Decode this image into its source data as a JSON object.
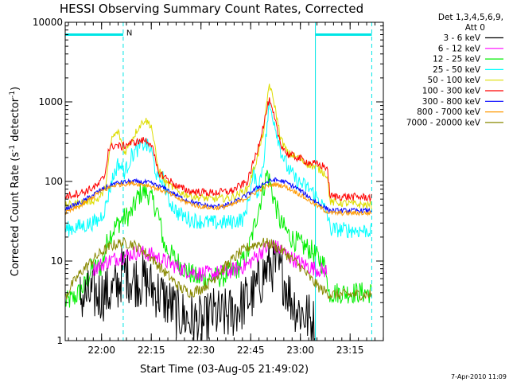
{
  "chart_data": {
    "type": "line",
    "title": "HESSI Observing Summary Count Rates, Corrected",
    "xlabel": "Start Time (03-Aug-05 21:49:02)",
    "ylabel_prefix": "Corrected Count Rate (s",
    "ylabel_exp1": "-1",
    "ylabel_mid": " detector",
    "ylabel_exp2": "-1",
    "ylabel_suffix": ")",
    "y_scale": "log",
    "ylim": [
      1,
      10000
    ],
    "xlim_minutes_after_start": [
      0,
      96
    ],
    "y_ticks": [
      {
        "value": 1,
        "label": "1"
      },
      {
        "value": 10,
        "label": "10"
      },
      {
        "value": 100,
        "label": "100"
      },
      {
        "value": 1000,
        "label": "1000"
      },
      {
        "value": 10000,
        "label": "10000"
      }
    ],
    "x_ticks": [
      {
        "minute": 10.97,
        "label": "22:00"
      },
      {
        "minute": 25.97,
        "label": "22:15"
      },
      {
        "minute": 40.97,
        "label": "22:30"
      },
      {
        "minute": 55.97,
        "label": "22:45"
      },
      {
        "minute": 70.97,
        "label": "23:00"
      },
      {
        "minute": 85.97,
        "label": "23:15"
      }
    ],
    "legend_header": [
      "Det 1,3,4,5,6,9,",
      "Att 0"
    ],
    "grid": false,
    "legend_position": "outside-right",
    "night_marker_label": "N",
    "night_intervals_minutes": [
      [
        0,
        17.5
      ],
      [
        75.5,
        92.5
      ]
    ],
    "night_bar_level": 7000,
    "boundary_lines_minutes": [
      0,
      17.5,
      75.5,
      92.5
    ],
    "series": [
      {
        "name": "3 - 6 keV",
        "color": "#000000",
        "noise": 0.35,
        "points": [
          [
            4.5,
            3.5
          ],
          [
            14,
            4
          ],
          [
            16,
            5
          ],
          [
            17.5,
            8
          ],
          [
            20,
            6
          ],
          [
            24,
            5.5
          ],
          [
            28,
            4
          ],
          [
            31,
            3
          ],
          [
            34,
            2.2
          ],
          [
            38,
            1.8
          ],
          [
            42,
            1.6
          ],
          [
            44,
            2.2
          ],
          [
            47,
            2
          ],
          [
            50,
            2.2
          ],
          [
            54,
            3
          ],
          [
            57,
            4
          ],
          [
            60,
            7
          ],
          [
            62,
            9
          ],
          [
            64,
            8
          ],
          [
            66,
            6
          ],
          [
            68,
            3.5
          ],
          [
            70,
            2.5
          ],
          [
            73,
            2
          ],
          [
            75.5,
            1.5
          ]
        ]
      },
      {
        "name": "6 - 12 keV",
        "color": "#ff00ff",
        "noise": 0.1,
        "points": [
          [
            8.5,
            8
          ],
          [
            13,
            10
          ],
          [
            16,
            11
          ],
          [
            19,
            12
          ],
          [
            22,
            13
          ],
          [
            26,
            12
          ],
          [
            30,
            10
          ],
          [
            35,
            8
          ],
          [
            40,
            7
          ],
          [
            45,
            7
          ],
          [
            50,
            7.5
          ],
          [
            55,
            9
          ],
          [
            59,
            13
          ],
          [
            62,
            16
          ],
          [
            65,
            14
          ],
          [
            68,
            11
          ],
          [
            72,
            9
          ],
          [
            75.5,
            8
          ],
          [
            79,
            7.5
          ]
        ]
      },
      {
        "name": "12 - 25 keV",
        "color": "#00ee00",
        "noise": 0.14,
        "points": [
          [
            0,
            3
          ],
          [
            3,
            3.5
          ],
          [
            6,
            5
          ],
          [
            8,
            8
          ],
          [
            11,
            8.5
          ],
          [
            13,
            20
          ],
          [
            16,
            30
          ],
          [
            18,
            35
          ],
          [
            20,
            40
          ],
          [
            22,
            65
          ],
          [
            23.5,
            75
          ],
          [
            25,
            70
          ],
          [
            27,
            50
          ],
          [
            28,
            40
          ],
          [
            30,
            15
          ],
          [
            32,
            12
          ],
          [
            36,
            8
          ],
          [
            40,
            6
          ],
          [
            44,
            6
          ],
          [
            48,
            6.5
          ],
          [
            52,
            8
          ],
          [
            55,
            12
          ],
          [
            58,
            40
          ],
          [
            61,
            130
          ],
          [
            63,
            60
          ],
          [
            65,
            30
          ],
          [
            68,
            20
          ],
          [
            71,
            16
          ],
          [
            74,
            14
          ],
          [
            77,
            10
          ],
          [
            79,
            8
          ],
          [
            79.1,
            4
          ],
          [
            92.5,
            4
          ]
        ]
      },
      {
        "name": "25 - 50 keV",
        "color": "#00ffff",
        "noise": 0.1,
        "points": [
          [
            0,
            25
          ],
          [
            6,
            28
          ],
          [
            10,
            32
          ],
          [
            12,
            45
          ],
          [
            14,
            100
          ],
          [
            16,
            170
          ],
          [
            18,
            130
          ],
          [
            20,
            210
          ],
          [
            22,
            260
          ],
          [
            24,
            300
          ],
          [
            26,
            240
          ],
          [
            28,
            100
          ],
          [
            29.5,
            110
          ],
          [
            31,
            60
          ],
          [
            34,
            40
          ],
          [
            38,
            33
          ],
          [
            42,
            31
          ],
          [
            46,
            30
          ],
          [
            50,
            31
          ],
          [
            54,
            34
          ],
          [
            56,
            80
          ],
          [
            57,
            130
          ],
          [
            58,
            70
          ],
          [
            60,
            200
          ],
          [
            61.5,
            900
          ],
          [
            63,
            600
          ],
          [
            65,
            250
          ],
          [
            67,
            150
          ],
          [
            70,
            100
          ],
          [
            74,
            80
          ],
          [
            77,
            55
          ],
          [
            79,
            40
          ],
          [
            80,
            25
          ],
          [
            92.5,
            24
          ]
        ]
      },
      {
        "name": "50 - 100 keV",
        "color": "#dddd00",
        "noise": 0.05,
        "points": [
          [
            0,
            50
          ],
          [
            6,
            55
          ],
          [
            10,
            60
          ],
          [
            12,
            80
          ],
          [
            14,
            350
          ],
          [
            16,
            420
          ],
          [
            18,
            230
          ],
          [
            20,
            330
          ],
          [
            22,
            470
          ],
          [
            24,
            600
          ],
          [
            26,
            500
          ],
          [
            28,
            150
          ],
          [
            30,
            100
          ],
          [
            34,
            75
          ],
          [
            38,
            65
          ],
          [
            44,
            60
          ],
          [
            50,
            62
          ],
          [
            55,
            80
          ],
          [
            58,
            200
          ],
          [
            60,
            450
          ],
          [
            61.5,
            1700
          ],
          [
            63,
            1000
          ],
          [
            65,
            350
          ],
          [
            67,
            230
          ],
          [
            70,
            200
          ],
          [
            74,
            160
          ],
          [
            77,
            140
          ],
          [
            79,
            120
          ],
          [
            80,
            55
          ],
          [
            92.5,
            50
          ]
        ]
      },
      {
        "name": "100 - 300 keV",
        "color": "#ff0000",
        "noise": 0.05,
        "points": [
          [
            0,
            65
          ],
          [
            6,
            75
          ],
          [
            10,
            90
          ],
          [
            12,
            120
          ],
          [
            13,
            250
          ],
          [
            15,
            290
          ],
          [
            17,
            270
          ],
          [
            19,
            300
          ],
          [
            21,
            310
          ],
          [
            24,
            330
          ],
          [
            26,
            300
          ],
          [
            28,
            130
          ],
          [
            30,
            115
          ],
          [
            34,
            85
          ],
          [
            38,
            75
          ],
          [
            44,
            72
          ],
          [
            50,
            75
          ],
          [
            55,
            100
          ],
          [
            58,
            250
          ],
          [
            60,
            550
          ],
          [
            61.5,
            1050
          ],
          [
            63,
            650
          ],
          [
            65,
            300
          ],
          [
            67,
            220
          ],
          [
            70,
            200
          ],
          [
            74,
            170
          ],
          [
            77,
            160
          ],
          [
            79,
            150
          ],
          [
            80,
            65
          ],
          [
            92.5,
            63
          ]
        ]
      },
      {
        "name": "300 - 800 keV",
        "color": "#0000ff",
        "noise": 0.03,
        "points": [
          [
            0,
            45
          ],
          [
            5,
            55
          ],
          [
            10,
            75
          ],
          [
            15,
            95
          ],
          [
            20,
            100
          ],
          [
            25,
            97
          ],
          [
            30,
            82
          ],
          [
            35,
            62
          ],
          [
            40,
            52
          ],
          [
            45,
            48
          ],
          [
            50,
            52
          ],
          [
            55,
            68
          ],
          [
            60,
            95
          ],
          [
            63,
            105
          ],
          [
            66,
            100
          ],
          [
            70,
            82
          ],
          [
            74,
            62
          ],
          [
            78,
            48
          ],
          [
            80,
            43
          ],
          [
            92.5,
            43
          ]
        ]
      },
      {
        "name": "800 - 7000 keV",
        "color": "#ff9900",
        "noise": 0.03,
        "points": [
          [
            0,
            40
          ],
          [
            5,
            50
          ],
          [
            10,
            72
          ],
          [
            15,
            90
          ],
          [
            20,
            95
          ],
          [
            25,
            90
          ],
          [
            30,
            75
          ],
          [
            35,
            58
          ],
          [
            40,
            49
          ],
          [
            45,
            46
          ],
          [
            50,
            50
          ],
          [
            55,
            63
          ],
          [
            60,
            85
          ],
          [
            63,
            92
          ],
          [
            66,
            88
          ],
          [
            70,
            72
          ],
          [
            74,
            56
          ],
          [
            78,
            44
          ],
          [
            80,
            40
          ],
          [
            92.5,
            40
          ]
        ]
      },
      {
        "name": "7000 - 20000 keV",
        "color": "#888800",
        "noise": 0.07,
        "points": [
          [
            0,
            3.5
          ],
          [
            2,
            5
          ],
          [
            5,
            7.5
          ],
          [
            8,
            10
          ],
          [
            11,
            13
          ],
          [
            14,
            15.5
          ],
          [
            17,
            17
          ],
          [
            20,
            16.5
          ],
          [
            23,
            14
          ],
          [
            26,
            11
          ],
          [
            29,
            8
          ],
          [
            32,
            6
          ],
          [
            35,
            4.5
          ],
          [
            38,
            4
          ],
          [
            41,
            4.5
          ],
          [
            44,
            5.5
          ],
          [
            47,
            7.5
          ],
          [
            50,
            10
          ],
          [
            53,
            13
          ],
          [
            56,
            15.5
          ],
          [
            59,
            17
          ],
          [
            62,
            16.5
          ],
          [
            65,
            14
          ],
          [
            68,
            11
          ],
          [
            71,
            8.5
          ],
          [
            74,
            6
          ],
          [
            77,
            4.5
          ],
          [
            80,
            3.8
          ],
          [
            92.5,
            3.8
          ]
        ]
      }
    ]
  },
  "footer": {
    "timestamp": "7-Apr-2010 11:09"
  }
}
